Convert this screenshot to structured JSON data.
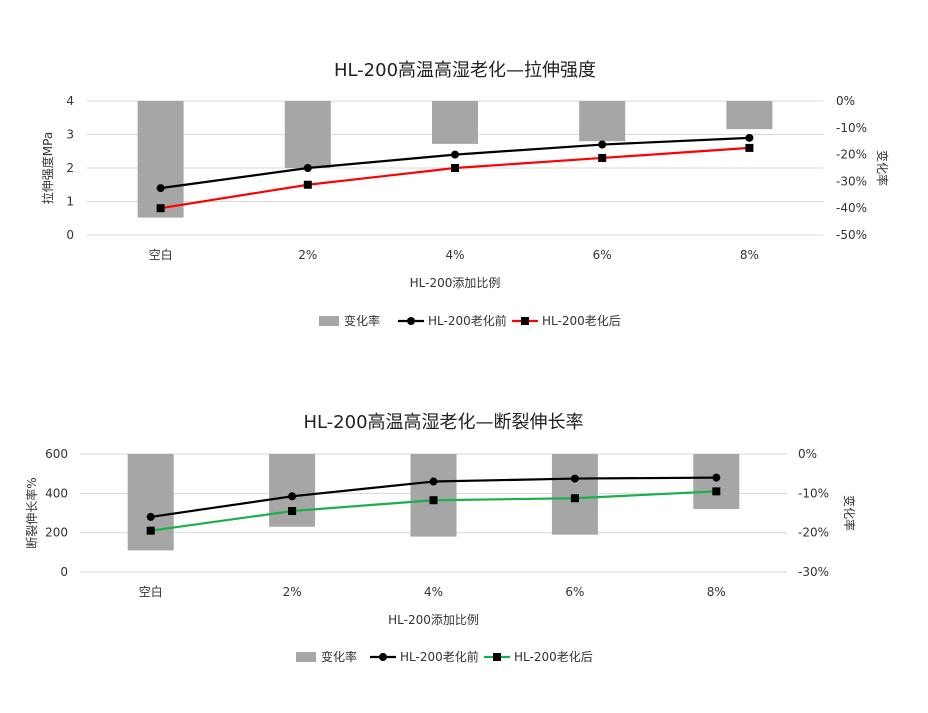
{
  "chart_data": [
    {
      "type": "bar+line",
      "title": "HL-200高温高湿老化—拉伸强度",
      "xlabel": "HL-200添加比例",
      "ylabel": "拉伸强度MPa",
      "y2label": "变化率",
      "categories": [
        "空白",
        "2%",
        "4%",
        "6%",
        "8%"
      ],
      "ylim": [
        0,
        4
      ],
      "yticks": [
        "0",
        "1",
        "2",
        "3",
        "4"
      ],
      "y2lim": [
        -50,
        0
      ],
      "y2ticks": [
        "0%",
        "-10%",
        "-20%",
        "-30%",
        "-40%",
        "-50%"
      ],
      "bar_series": {
        "name": "变化率",
        "color": "#a6a6a6",
        "values": [
          -43.5,
          -25,
          -16,
          -15,
          -10.5
        ]
      },
      "line_series": [
        {
          "name": "HL-200老化前",
          "color": "#000000",
          "marker": "circle",
          "values": [
            1.4,
            2.0,
            2.4,
            2.7,
            2.9
          ]
        },
        {
          "name": "HL-200老化后",
          "color": "#ff0000",
          "marker": "square",
          "values": [
            0.8,
            1.5,
            2.0,
            2.3,
            2.6
          ]
        }
      ],
      "legend_position": "bottom"
    },
    {
      "type": "bar+line",
      "title": "HL-200高温高湿老化—断裂伸长率",
      "xlabel": "HL-200添加比例",
      "ylabel": "断裂伸长率%",
      "y2label": "变化率",
      "categories": [
        "空白",
        "2%",
        "4%",
        "6%",
        "8%"
      ],
      "ylim": [
        0,
        600
      ],
      "yticks": [
        "0",
        "200",
        "400",
        "600"
      ],
      "y2lim": [
        -30,
        0
      ],
      "y2ticks": [
        "0%",
        "-10%",
        "-20%",
        "-30%"
      ],
      "bar_series": {
        "name": "变化率",
        "color": "#a6a6a6",
        "values": [
          -24.5,
          -18.5,
          -21,
          -20.5,
          -14
        ]
      },
      "line_series": [
        {
          "name": "HL-200老化前",
          "color": "#000000",
          "marker": "circle",
          "values": [
            280,
            385,
            460,
            475,
            480
          ]
        },
        {
          "name": "HL-200老化后",
          "color": "#18b04a",
          "marker": "square",
          "values": [
            210,
            310,
            365,
            375,
            410
          ]
        }
      ],
      "legend_position": "bottom"
    }
  ]
}
